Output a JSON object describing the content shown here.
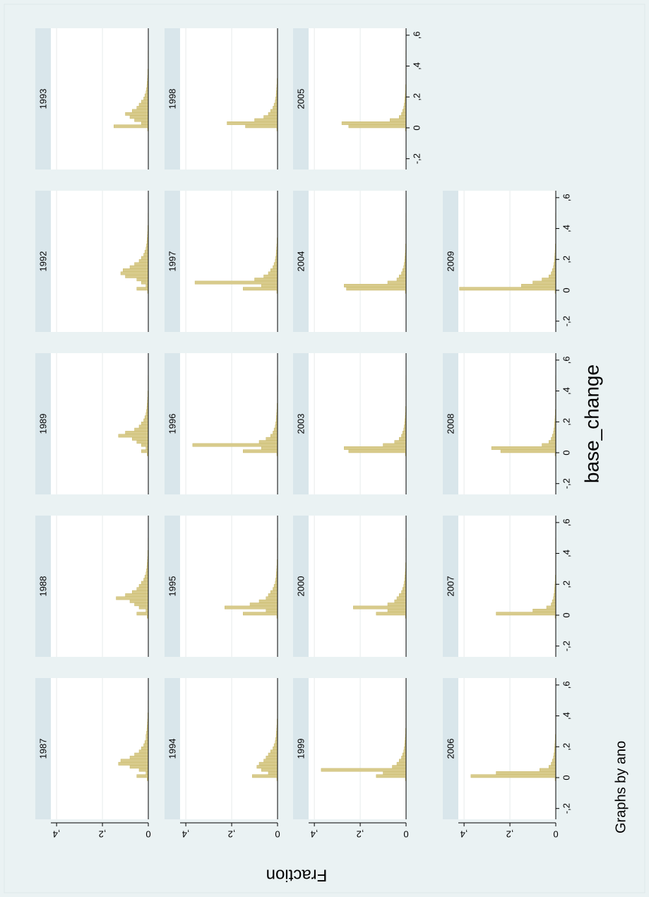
{
  "chart_data": {
    "type": "histogram",
    "xlabel": "base_change",
    "ylabel": "Fraction",
    "note": "Graphs by ano",
    "bins": [
      -0.04,
      -0.02,
      0,
      0.02,
      0.04,
      0.06,
      0.08,
      0.1,
      0.12,
      0.14,
      0.16,
      0.18,
      0.2,
      0.22,
      0.24,
      0.26,
      0.28,
      0.3,
      0.32,
      0.34,
      0.36,
      0.38,
      0.4,
      0.42,
      0.44,
      0.46,
      0.48,
      0.5
    ],
    "color": "#d8cb8c",
    "edgecolor": "#c9b96a",
    "xlim": [
      -0.27,
      0.645
    ],
    "xticks": [
      {
        "value": -0.2,
        "label": "-,2"
      },
      0,
      {
        "value": 0.2,
        "label": ",2"
      },
      {
        "value": 0.4,
        "label": ",4"
      },
      {
        "value": 0.6,
        "label": ",6"
      }
    ],
    "ylim": [
      0,
      0.425
    ],
    "yticks": [
      0,
      {
        "value": 0.2,
        "label": ",2"
      },
      {
        "value": 0.4,
        "label": ",4"
      }
    ],
    "grid": true,
    "panels": [
      {
        "title": "1987",
        "values": [
          0,
          0.005,
          0.05,
          0.01,
          0.04,
          0.08,
          0.13,
          0.12,
          0.08,
          0.06,
          0.04,
          0.03,
          0.02,
          0.015,
          0.01,
          0.01,
          0.008,
          0.006,
          0.005,
          0.004,
          0.003,
          0.002,
          0.002,
          0.001,
          0.001,
          0.001,
          0.001
        ]
      },
      {
        "title": "1988",
        "values": [
          0,
          0.005,
          0.05,
          0.01,
          0.04,
          0.06,
          0.08,
          0.14,
          0.1,
          0.07,
          0.05,
          0.04,
          0.03,
          0.02,
          0.015,
          0.01,
          0.008,
          0.006,
          0.005,
          0.004,
          0.003,
          0.002,
          0.002,
          0.001,
          0.001,
          0.001,
          0.001
        ]
      },
      {
        "title": "1989",
        "values": [
          0,
          0.005,
          0.03,
          0.01,
          0.03,
          0.05,
          0.07,
          0.13,
          0.1,
          0.06,
          0.04,
          0.03,
          0.02,
          0.015,
          0.01,
          0.008,
          0.006,
          0.005,
          0.004,
          0.003,
          0.002,
          0.002,
          0.001,
          0.001,
          0.001,
          0.001,
          0.001
        ]
      },
      {
        "title": "1992",
        "values": [
          0,
          0.003,
          0.05,
          0.01,
          0.03,
          0.05,
          0.1,
          0.12,
          0.11,
          0.08,
          0.06,
          0.04,
          0.03,
          0.02,
          0.015,
          0.01,
          0.008,
          0.006,
          0.005,
          0.004,
          0.003,
          0.002,
          0.002,
          0.001,
          0.001,
          0.001,
          0.001
        ]
      },
      {
        "title": "1993",
        "values": [
          0,
          0.003,
          0.15,
          0.03,
          0.06,
          0.08,
          0.1,
          0.07,
          0.05,
          0.04,
          0.03,
          0.02,
          0.015,
          0.01,
          0.008,
          0.006,
          0.005,
          0.004,
          0.003,
          0.002,
          0.002,
          0.001,
          0.001,
          0.001,
          0.001,
          0.001,
          0.001
        ]
      },
      {
        "title": "1994",
        "values": [
          0,
          0.003,
          0.11,
          0.04,
          0.07,
          0.09,
          0.08,
          0.06,
          0.05,
          0.04,
          0.03,
          0.02,
          0.015,
          0.01,
          0.008,
          0.006,
          0.005,
          0.004,
          0.003,
          0.002,
          0.002,
          0.001,
          0.001,
          0.001,
          0.001,
          0.001,
          0.001
        ]
      },
      {
        "title": "1995",
        "values": [
          0,
          0.003,
          0.15,
          0.05,
          0.23,
          0.12,
          0.08,
          0.05,
          0.04,
          0.03,
          0.02,
          0.015,
          0.01,
          0.008,
          0.006,
          0.005,
          0.004,
          0.003,
          0.002,
          0.002,
          0.001,
          0.001,
          0.001,
          0.001,
          0.001,
          0.001,
          0.001
        ]
      },
      {
        "title": "1996",
        "values": [
          0,
          0.003,
          0.15,
          0.07,
          0.37,
          0.08,
          0.05,
          0.03,
          0.02,
          0.015,
          0.01,
          0.008,
          0.006,
          0.005,
          0.004,
          0.003,
          0.002,
          0.002,
          0.001,
          0.001,
          0.001,
          0.001,
          0.001,
          0.001,
          0.001,
          0.001,
          0.001
        ]
      },
      {
        "title": "1997",
        "values": [
          0,
          0.003,
          0.15,
          0.07,
          0.36,
          0.1,
          0.06,
          0.04,
          0.03,
          0.02,
          0.015,
          0.01,
          0.008,
          0.006,
          0.005,
          0.004,
          0.003,
          0.002,
          0.002,
          0.001,
          0.001,
          0.001,
          0.001,
          0.001,
          0.001,
          0.001,
          0.001
        ]
      },
      {
        "title": "1998",
        "values": [
          0,
          0.003,
          0.14,
          0.22,
          0.1,
          0.06,
          0.04,
          0.03,
          0.02,
          0.015,
          0.01,
          0.008,
          0.006,
          0.005,
          0.004,
          0.003,
          0.002,
          0.002,
          0.001,
          0.001,
          0.001,
          0.001,
          0.001,
          0.001,
          0.001,
          0.001,
          0.001
        ]
      },
      {
        "title": "1999",
        "values": [
          0,
          0.003,
          0.13,
          0.1,
          0.37,
          0.06,
          0.04,
          0.03,
          0.02,
          0.015,
          0.01,
          0.008,
          0.006,
          0.005,
          0.004,
          0.003,
          0.002,
          0.002,
          0.001,
          0.001,
          0.001,
          0.001,
          0.001,
          0.001,
          0.001,
          0.001,
          0.001
        ]
      },
      {
        "title": "2000",
        "values": [
          0,
          0.003,
          0.13,
          0.08,
          0.23,
          0.08,
          0.05,
          0.04,
          0.03,
          0.02,
          0.015,
          0.01,
          0.008,
          0.006,
          0.005,
          0.004,
          0.003,
          0.002,
          0.002,
          0.001,
          0.001,
          0.001,
          0.001,
          0.001,
          0.001,
          0.001,
          0.001
        ]
      },
      {
        "title": "2003",
        "values": [
          0,
          0.003,
          0.25,
          0.27,
          0.1,
          0.05,
          0.03,
          0.02,
          0.015,
          0.01,
          0.008,
          0.006,
          0.005,
          0.004,
          0.003,
          0.002,
          0.002,
          0.001,
          0.001,
          0.001,
          0.001,
          0.001,
          0.001,
          0.001,
          0.001,
          0.001,
          0.001
        ]
      },
      {
        "title": "2004",
        "values": [
          0,
          0.003,
          0.26,
          0.27,
          0.08,
          0.04,
          0.03,
          0.02,
          0.015,
          0.01,
          0.008,
          0.006,
          0.005,
          0.004,
          0.003,
          0.002,
          0.002,
          0.001,
          0.001,
          0.001,
          0.001,
          0.001,
          0.001,
          0.001,
          0.001,
          0.001,
          0.001
        ]
      },
      {
        "title": "2005",
        "values": [
          0,
          0.003,
          0.25,
          0.28,
          0.07,
          0.03,
          0.02,
          0.015,
          0.01,
          0.008,
          0.006,
          0.005,
          0.004,
          0.003,
          0.002,
          0.002,
          0.001,
          0.001,
          0.001,
          0.001,
          0.001,
          0.001,
          0.001,
          0.001,
          0.001,
          0.001,
          0.001
        ]
      },
      {
        "title": "2006",
        "values": [
          0,
          0.003,
          0.37,
          0.26,
          0.07,
          0.03,
          0.02,
          0.015,
          0.01,
          0.008,
          0.006,
          0.005,
          0.004,
          0.003,
          0.002,
          0.002,
          0.001,
          0.001,
          0.001,
          0.001,
          0.001,
          0.001,
          0.001,
          0.001,
          0.001,
          0.001,
          0.001
        ]
      },
      {
        "title": "2007",
        "values": [
          0,
          0.003,
          0.26,
          0.1,
          0.04,
          0.02,
          0.015,
          0.01,
          0.008,
          0.006,
          0.005,
          0.004,
          0.003,
          0.002,
          0.002,
          0.001,
          0.001,
          0.001,
          0.001,
          0.001,
          0.001,
          0.001,
          0.001,
          0.001,
          0.001,
          0.001,
          0.001
        ]
      },
      {
        "title": "2008",
        "values": [
          0,
          0.003,
          0.24,
          0.28,
          0.06,
          0.03,
          0.02,
          0.015,
          0.01,
          0.008,
          0.006,
          0.005,
          0.004,
          0.003,
          0.002,
          0.002,
          0.001,
          0.001,
          0.001,
          0.001,
          0.001,
          0.001,
          0.001,
          0.001,
          0.001,
          0.001,
          0.001
        ]
      },
      {
        "title": "2009",
        "values": [
          0,
          0.003,
          0.42,
          0.15,
          0.1,
          0.06,
          0.03,
          0.02,
          0.015,
          0.01,
          0.008,
          0.006,
          0.005,
          0.004,
          0.003,
          0.002,
          0.002,
          0.001,
          0.001,
          0.001,
          0.001,
          0.001,
          0.001,
          0.001,
          0.001,
          0.001,
          0.001
        ]
      }
    ]
  }
}
